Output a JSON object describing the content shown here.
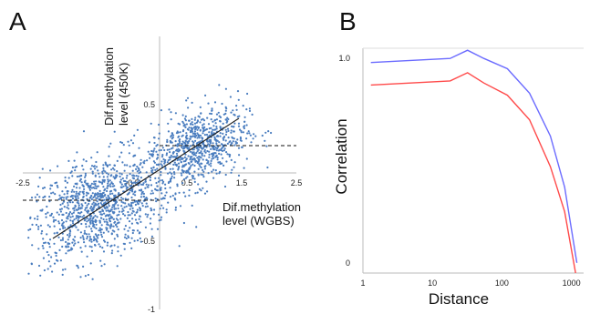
{
  "chart_data": [
    {
      "type": "scatter",
      "panel_label": "A",
      "xlabel": [
        "Dif.methylation",
        "level (WGBS)"
      ],
      "ylabel": [
        "Dif.methylation",
        "level (450K)"
      ],
      "xlim": [
        -2.5,
        2.5
      ],
      "ylim": [
        -1,
        1
      ],
      "x_ticks": [
        {
          "value": -2.5,
          "label": "-2.5"
        },
        {
          "value": -0.5,
          "label": "-0.5"
        },
        {
          "value": 0.5,
          "label": "0.5"
        },
        {
          "value": 1.5,
          "label": "1.5"
        },
        {
          "value": 2.5,
          "label": "2.5"
        }
      ],
      "y_ticks": [
        {
          "value": 0.5,
          "label": "0.5"
        },
        {
          "value": -0.5,
          "label": "-0.5"
        },
        {
          "value": -1,
          "label": "-1"
        }
      ],
      "point_color": "#4a7dbf",
      "clusters": [
        {
          "center": [
            -1.1,
            -0.25
          ],
          "spread": [
            0.65,
            0.18
          ],
          "count": 1100,
          "slope": 0.12
        },
        {
          "center": [
            0.7,
            0.19
          ],
          "spread": [
            0.45,
            0.14
          ],
          "count": 750,
          "slope": 0.12
        }
      ],
      "regression_line": {
        "x": [
          -1.95,
          1.45
        ],
        "y": [
          -0.48,
          0.4
        ],
        "color": "#222222"
      },
      "threshold_lines": [
        {
          "y": -0.2,
          "x": [
            -2.5,
            0.0
          ]
        },
        {
          "y": 0.2,
          "x": [
            0.0,
            2.5
          ]
        }
      ],
      "grid": false
    },
    {
      "type": "line",
      "panel_label": "B",
      "xlabel": "Distance",
      "ylabel": "Correlation",
      "xscale": "log",
      "xlim": [
        1,
        1500
      ],
      "ylim": [
        -0.05,
        1.05
      ],
      "x_ticks": [
        {
          "value": 1,
          "label": "1"
        },
        {
          "value": 10,
          "label": "10"
        },
        {
          "value": 100,
          "label": "100"
        },
        {
          "value": 1000,
          "label": "1000"
        }
      ],
      "y_ticks": [
        {
          "value": 1.0,
          "label": "1.0"
        },
        {
          "value": 0,
          "label": "0"
        }
      ],
      "series": [
        {
          "color": "#6b6bff",
          "x": [
            1.3,
            18,
            32,
            55,
            120,
            250,
            500,
            800,
            1200
          ],
          "y": [
            0.98,
            1.0,
            1.04,
            1.0,
            0.95,
            0.83,
            0.62,
            0.37,
            0.0
          ]
        },
        {
          "color": "#ff4a4a",
          "x": [
            1.3,
            18,
            32,
            55,
            120,
            250,
            500,
            800,
            1150
          ],
          "y": [
            0.87,
            0.89,
            0.93,
            0.88,
            0.82,
            0.7,
            0.47,
            0.25,
            -0.05
          ]
        }
      ],
      "grid": false
    }
  ]
}
